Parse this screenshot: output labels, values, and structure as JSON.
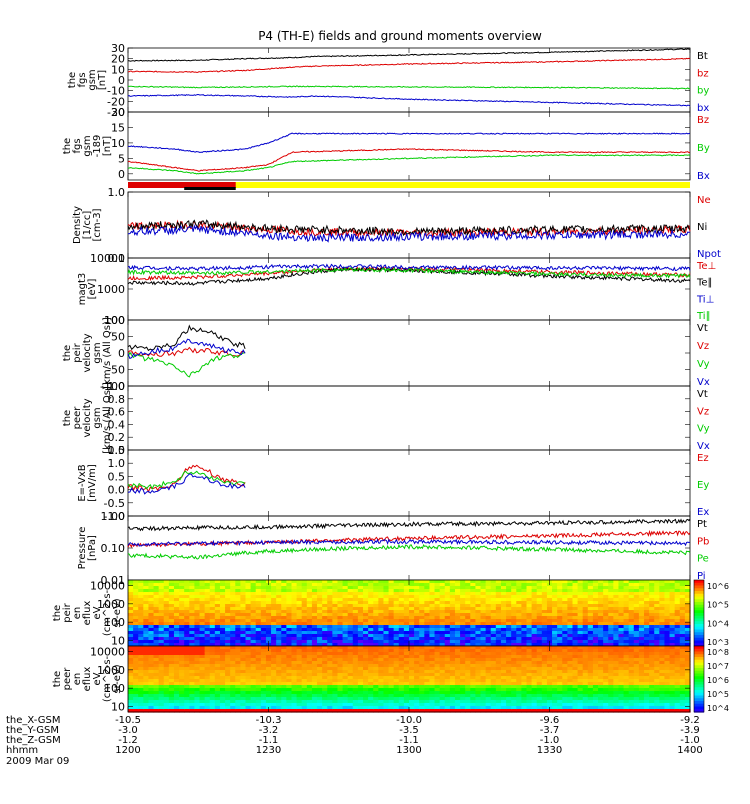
{
  "title": "P4 (TH-E) fields and ground moments overview",
  "colors": {
    "black": "#000000",
    "red": "#dd0000",
    "green": "#00cc00",
    "blue": "#0000cc",
    "yellow": "#ffff00"
  },
  "chart_data": [
    {
      "type": "line",
      "name": "fgs_gsm",
      "ylabel_lines": [
        "the",
        "fgs",
        "gsm",
        "[nT]"
      ],
      "ylim": [
        -30,
        30
      ],
      "yticks": [
        "30",
        "20",
        "10",
        "0",
        "-10",
        "-20",
        "-30"
      ],
      "legend": [
        "Bt",
        "bz",
        "by",
        "bx"
      ],
      "series": [
        {
          "name": "Bt",
          "color": "#000000",
          "x": [
            1200,
            1215,
            1225,
            1235,
            1240,
            1300,
            1330,
            1400
          ],
          "y": [
            18,
            18.5,
            20,
            21,
            22,
            23.5,
            26,
            29
          ]
        },
        {
          "name": "bz",
          "color": "#dd0000",
          "x": [
            1200,
            1215,
            1225,
            1235,
            1240,
            1300,
            1330,
            1400
          ],
          "y": [
            8,
            7.5,
            9,
            12,
            13,
            15,
            17,
            20
          ]
        },
        {
          "name": "by",
          "color": "#00cc00",
          "x": [
            1200,
            1215,
            1225,
            1235,
            1240,
            1300,
            1330,
            1400
          ],
          "y": [
            -6,
            -7,
            -6.5,
            -6,
            -6,
            -6.5,
            -7,
            -8
          ]
        },
        {
          "name": "bx",
          "color": "#0000cc",
          "x": [
            1200,
            1215,
            1225,
            1235,
            1240,
            1300,
            1330,
            1400
          ],
          "y": [
            -15,
            -14,
            -15,
            -16,
            -15,
            -18,
            -21,
            -24
          ]
        }
      ]
    },
    {
      "type": "line",
      "name": "fgs_gse",
      "ylabel_lines": [
        "the",
        "fgs",
        "gsm",
        "-189",
        "[nT]"
      ],
      "ylim": [
        -2,
        20
      ],
      "yticks": [
        "20",
        "15",
        "10",
        "5",
        "0"
      ],
      "legend": [
        "Bz",
        "By",
        "Bx"
      ],
      "series": [
        {
          "name": "Bz",
          "color": "#dd0000",
          "x": [
            1200,
            1210,
            1215,
            1225,
            1230,
            1235,
            1300,
            1330,
            1400
          ],
          "y": [
            4,
            2,
            1,
            2,
            3,
            7,
            8,
            7,
            7
          ]
        },
        {
          "name": "By",
          "color": "#00cc00",
          "x": [
            1200,
            1210,
            1215,
            1225,
            1230,
            1235,
            1300,
            1330,
            1400
          ],
          "y": [
            2,
            1,
            0,
            1,
            2,
            4,
            5,
            6,
            6
          ]
        },
        {
          "name": "Bx",
          "color": "#0000cc",
          "x": [
            1200,
            1210,
            1215,
            1225,
            1230,
            1235,
            1300,
            1330,
            1400
          ],
          "y": [
            9,
            8,
            7,
            8,
            10,
            13,
            13,
            13,
            13
          ]
        }
      ]
    },
    {
      "type": "line",
      "name": "density",
      "ylabel_lines": [
        "Density",
        "[1/cc]",
        "[cm-3]"
      ],
      "ylim": [
        0.1,
        1.0
      ],
      "yscale": "log",
      "yticks": [
        "1.0",
        "0.1"
      ],
      "legend": [
        "Ne",
        "Ni",
        "Npot"
      ],
      "series": [
        {
          "name": "Ne",
          "color": "#dd0000",
          "x": [
            1200,
            1215,
            1225,
            1230,
            1240,
            1300,
            1330,
            1400
          ],
          "y": [
            0.3,
            0.32,
            0.28,
            0.27,
            0.25,
            0.24,
            0.25,
            0.27
          ]
        },
        {
          "name": "Ni",
          "color": "#000000",
          "x": [
            1200,
            1215,
            1225,
            1230,
            1240,
            1300,
            1330,
            1400
          ],
          "y": [
            0.3,
            0.33,
            0.3,
            0.28,
            0.27,
            0.25,
            0.27,
            0.28
          ]
        },
        {
          "name": "Npot",
          "color": "#0000cc",
          "x": [
            1200,
            1215,
            1225,
            1230,
            1240,
            1300,
            1330,
            1400
          ],
          "y": [
            0.25,
            0.27,
            0.24,
            0.22,
            0.2,
            0.21,
            0.22,
            0.23
          ]
        }
      ]
    },
    {
      "type": "line",
      "name": "temperature",
      "ylabel_lines": [
        "magt3",
        "[eV]"
      ],
      "ylim": [
        100,
        10000
      ],
      "yscale": "log",
      "yticks": [
        "10000",
        "1000",
        "100"
      ],
      "legend": [
        "Te⊥",
        "Te∥",
        "Ti⊥",
        "Ti∥"
      ],
      "series": [
        {
          "name": "Te⊥",
          "color": "#dd0000",
          "x": [
            1200,
            1215,
            1230,
            1245,
            1300,
            1330,
            1400
          ],
          "y": [
            2200,
            2400,
            3200,
            4500,
            4500,
            3500,
            2800
          ]
        },
        {
          "name": "Te∥",
          "color": "#000000",
          "x": [
            1200,
            1215,
            1230,
            1245,
            1300,
            1330,
            1400
          ],
          "y": [
            1600,
            1500,
            2200,
            4200,
            4000,
            2600,
            1800
          ]
        },
        {
          "name": "Ti⊥",
          "color": "#0000cc",
          "x": [
            1200,
            1215,
            1230,
            1245,
            1300,
            1330,
            1400
          ],
          "y": [
            5000,
            4500,
            5200,
            5500,
            5000,
            4800,
            4500
          ]
        },
        {
          "name": "Ti∥",
          "color": "#00cc00",
          "x": [
            1200,
            1215,
            1230,
            1245,
            1300,
            1330,
            1400
          ],
          "y": [
            3500,
            3200,
            3600,
            4200,
            4000,
            3000,
            2600
          ]
        }
      ]
    },
    {
      "type": "line",
      "name": "ion_velocity",
      "ylabel_lines": [
        "the",
        "peir",
        "velocity",
        "gsm",
        "[km/s (All Qs)]"
      ],
      "ylim": [
        -100,
        100
      ],
      "yticks": [
        "100",
        "50",
        "0",
        "-50",
        "-100"
      ],
      "legend": [
        "Vt",
        "Vz",
        "Vy",
        "Vx"
      ],
      "series": [
        {
          "name": "Vt",
          "color": "#000000",
          "x": [
            1200,
            1205,
            1210,
            1213,
            1218,
            1222,
            1225
          ],
          "y": [
            20,
            15,
            30,
            75,
            60,
            30,
            20
          ]
        },
        {
          "name": "Vz",
          "color": "#dd0000",
          "x": [
            1200,
            1205,
            1210,
            1213,
            1218,
            1222,
            1225
          ],
          "y": [
            5,
            -5,
            0,
            10,
            5,
            -5,
            0
          ]
        },
        {
          "name": "Vy",
          "color": "#00cc00",
          "x": [
            1200,
            1205,
            1210,
            1213,
            1218,
            1222,
            1225
          ],
          "y": [
            -5,
            -20,
            -40,
            -70,
            -20,
            -10,
            -5
          ]
        },
        {
          "name": "Vx",
          "color": "#0000cc",
          "x": [
            1200,
            1205,
            1210,
            1213,
            1218,
            1222,
            1225
          ],
          "y": [
            -10,
            5,
            15,
            40,
            20,
            5,
            0
          ]
        }
      ]
    },
    {
      "type": "line",
      "name": "electron_velocity",
      "ylabel_lines": [
        "the",
        "peer",
        "velocity",
        "gsm",
        "[km/s (All Qs)]"
      ],
      "ylim": [
        0,
        1
      ],
      "yticks": [
        "1.0",
        "0.8",
        "0.6",
        "0.4",
        "0.2",
        "0.0"
      ],
      "legend": [
        "Vt",
        "Vz",
        "Vy",
        "Vx"
      ],
      "series": []
    },
    {
      "type": "line",
      "name": "efield",
      "ylabel_lines": [
        "E=-VxB",
        "[mV/m]"
      ],
      "ylim": [
        -1.0,
        1.5
      ],
      "yticks": [
        "1.5",
        "1.0",
        "0.5",
        "0.0",
        "-0.5",
        "-1.0"
      ],
      "legend": [
        "Ez",
        "Ey",
        "Ex"
      ],
      "series": [
        {
          "name": "Ez",
          "color": "#dd0000",
          "x": [
            1200,
            1205,
            1210,
            1213,
            1216,
            1220,
            1225
          ],
          "y": [
            0.1,
            0.0,
            0.2,
            0.9,
            0.8,
            0.4,
            0.2
          ]
        },
        {
          "name": "Ey",
          "color": "#00cc00",
          "x": [
            1200,
            1205,
            1210,
            1213,
            1216,
            1220,
            1225
          ],
          "y": [
            0.2,
            0.1,
            0.3,
            0.7,
            0.6,
            0.3,
            0.2
          ]
        },
        {
          "name": "Ex",
          "color": "#0000cc",
          "x": [
            1200,
            1205,
            1210,
            1213,
            1216,
            1220,
            1225
          ],
          "y": [
            0.0,
            -0.1,
            0.1,
            0.5,
            0.5,
            0.2,
            0.1
          ]
        }
      ]
    },
    {
      "type": "line",
      "name": "pressure",
      "ylabel_lines": [
        "Pressure",
        "[nPa]"
      ],
      "ylim": [
        0.01,
        1.0
      ],
      "yscale": "log",
      "yticks": [
        "1.00",
        "0.10",
        "0.01"
      ],
      "legend": [
        "Pt",
        "Pb",
        "Pe",
        "Pi"
      ],
      "series": [
        {
          "name": "Pt",
          "color": "#000000",
          "x": [
            1200,
            1230,
            1300,
            1330,
            1400
          ],
          "y": [
            0.4,
            0.45,
            0.55,
            0.6,
            0.7
          ]
        },
        {
          "name": "Pb",
          "color": "#dd0000",
          "x": [
            1200,
            1230,
            1300,
            1330,
            1400
          ],
          "y": [
            0.12,
            0.15,
            0.2,
            0.24,
            0.3
          ]
        },
        {
          "name": "Pe",
          "color": "#00cc00",
          "x": [
            1200,
            1215,
            1230,
            1300,
            1330,
            1400
          ],
          "y": [
            0.06,
            0.05,
            0.08,
            0.11,
            0.09,
            0.07
          ]
        },
        {
          "name": "Pi",
          "color": "#0000cc",
          "x": [
            1200,
            1230,
            1300,
            1330,
            1400
          ],
          "y": [
            0.13,
            0.15,
            0.16,
            0.15,
            0.14
          ]
        }
      ]
    },
    {
      "type": "heatmap",
      "name": "ion_eflux",
      "ylabel_lines": [
        "the",
        "peir",
        "en",
        "eflux",
        "eV",
        "(cm^2-s-",
        "sr-eV)"
      ],
      "ylim": [
        5,
        20000
      ],
      "yscale": "log",
      "yticks": [
        "10000",
        "1000",
        "100",
        "10"
      ],
      "colorbar": {
        "labels": [
          "10^6",
          "10^5",
          "10^4",
          "10^3"
        ]
      }
    },
    {
      "type": "heatmap",
      "name": "electron_eflux",
      "ylabel_lines": [
        "the",
        "peer",
        "en",
        "eflux",
        "eV",
        "(cm^2-s-",
        "sr-eV)"
      ],
      "ylim": [
        5,
        20000
      ],
      "yscale": "log",
      "yticks": [
        "10000",
        "1000",
        "100",
        "10"
      ],
      "colorbar": {
        "labels": [
          "10^8",
          "10^7",
          "10^6",
          "10^5",
          "10^4"
        ]
      }
    }
  ],
  "xaxis": {
    "range": [
      1200,
      1400
    ],
    "rows": [
      {
        "label": "the_X-GSM",
        "values": [
          "-10.5",
          "-10.3",
          "-10.0",
          "-9.6",
          "-9.2"
        ]
      },
      {
        "label": "the_Y-GSM",
        "values": [
          "-3.0",
          "-3.2",
          "-3.5",
          "-3.7",
          "-3.9"
        ]
      },
      {
        "label": "the_Z-GSM",
        "values": [
          "-1.2",
          "-1.1",
          "-1.1",
          "-1.0",
          "-1.0"
        ]
      },
      {
        "label": "hhmm",
        "values": [
          "1200",
          "1230",
          "1300",
          "1330",
          "1400"
        ]
      }
    ],
    "date": "2009 Mar 09"
  }
}
